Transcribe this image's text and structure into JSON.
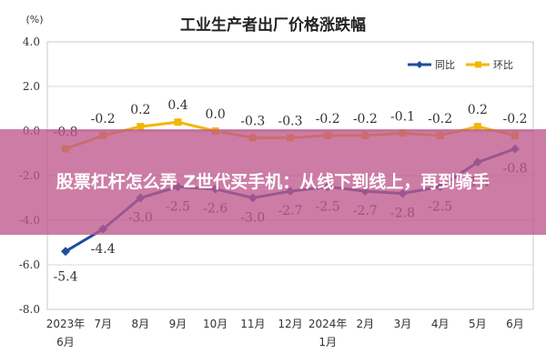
{
  "chart_data": {
    "type": "line",
    "title": "工业生产者出厂价格涨跌幅",
    "y_unit": "(%)",
    "ylim": [
      -8.0,
      4.0
    ],
    "y_ticks": [
      "4.0",
      "2.0",
      "0.0",
      "-2.0",
      "-4.0",
      "-6.0",
      "-8.0"
    ],
    "y_tick_values": [
      4,
      2,
      0,
      -2,
      -4,
      -6,
      -8
    ],
    "categories": [
      "2023年6月",
      "7月",
      "8月",
      "9月",
      "10月",
      "11月",
      "12月",
      "2024年1月",
      "2月",
      "3月",
      "4月",
      "5月",
      "6月"
    ],
    "grid": true,
    "legend_position": "top-right",
    "series": [
      {
        "name": "同比",
        "color": "#1f4e9c",
        "marker": "diamond",
        "values": [
          -5.4,
          -4.4,
          -3.0,
          -2.5,
          -2.6,
          -3.0,
          -2.7,
          -2.5,
          -2.7,
          -2.8,
          -2.5,
          -1.4,
          -0.8
        ]
      },
      {
        "name": "环比",
        "color": "#f2b705",
        "marker": "square",
        "values": [
          -0.8,
          -0.2,
          0.2,
          0.4,
          0.0,
          -0.3,
          -0.3,
          -0.2,
          -0.2,
          -0.1,
          -0.2,
          0.2,
          -0.2
        ]
      }
    ]
  },
  "overlay": {
    "headline": "股票杠杆怎么弄 Z世代买手机：从线下到线上，再到骑手"
  }
}
